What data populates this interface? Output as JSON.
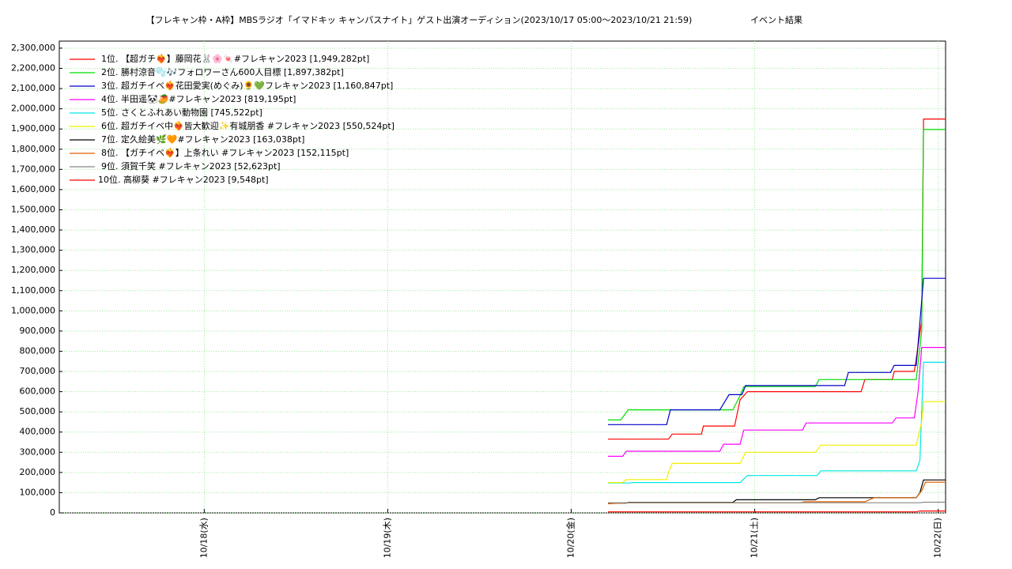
{
  "chart_data": {
    "type": "line",
    "title": "【フレキャン枠・A枠】MBSラジオ「イマドキッ キャンパスナイト」ゲスト出演オーディション(2023/10/17 05:00〜2023/10/21 21:59)",
    "subtitle": "イベント結果",
    "xlim": [
      17.21,
      22.04
    ],
    "xticks": [
      {
        "value": 18,
        "label": "10/18(水)"
      },
      {
        "value": 19,
        "label": "10/19(木)"
      },
      {
        "value": 20,
        "label": "10/20(金)"
      },
      {
        "value": 21,
        "label": "10/21(土)"
      },
      {
        "value": 22,
        "label": "10/22(日)"
      }
    ],
    "ylim": [
      0,
      2335000
    ],
    "yticks": [
      0,
      {
        "value": 100000,
        "label": "100,000"
      },
      {
        "value": 200000,
        "label": "200,000"
      },
      {
        "value": 300000,
        "label": "300,000"
      },
      {
        "value": 400000,
        "label": "400,000"
      },
      {
        "value": 500000,
        "label": "500,000"
      },
      {
        "value": 600000,
        "label": "600,000"
      },
      {
        "value": 700000,
        "label": "700,000"
      },
      {
        "value": 800000,
        "label": "800,000"
      },
      {
        "value": 900000,
        "label": "900,000"
      },
      {
        "value": 1000000,
        "label": "1,000,000"
      },
      {
        "value": 1100000,
        "label": "1,100,000"
      },
      {
        "value": 1200000,
        "label": "1,200,000"
      },
      {
        "value": 1300000,
        "label": "1,300,000"
      },
      {
        "value": 1400000,
        "label": "1,400,000"
      },
      {
        "value": 1500000,
        "label": "1,500,000"
      },
      {
        "value": 1600000,
        "label": "1,600,000"
      },
      {
        "value": 1700000,
        "label": "1,700,000"
      },
      {
        "value": 1800000,
        "label": "1,800,000"
      },
      {
        "value": 1900000,
        "label": "1,900,000"
      },
      {
        "value": 2000000,
        "label": "2,000,000"
      },
      {
        "value": 2100000,
        "label": "2,100,000"
      },
      {
        "value": 2200000,
        "label": "2,200,000"
      },
      {
        "value": 2300000,
        "label": "2,300,000"
      }
    ],
    "grid": true,
    "legend": "upper left",
    "series": [
      {
        "name": "1位. 【超ガチ❤️‍🔥】藤岡花🐰🌸🍬#フレキャン2023 [1,949,282pt]",
        "color": "#ff0000",
        "x": [
          20.2,
          20.53,
          20.55,
          20.71,
          20.72,
          20.89,
          20.92,
          20.96,
          21.58,
          21.6,
          21.75,
          21.76,
          21.87,
          21.91,
          21.92,
          22.04
        ],
        "values": [
          365000,
          365000,
          390000,
          390000,
          430000,
          430000,
          560000,
          600000,
          600000,
          660000,
          660000,
          700000,
          700000,
          950000,
          1949282,
          1949282
        ]
      },
      {
        "name": "2位. 勝村涼音🫧🎶フォロワーさん600人目標 [1,897,382pt]",
        "color": "#00dd00",
        "x": [
          20.2,
          20.27,
          20.31,
          20.88,
          20.92,
          20.94,
          21.33,
          21.35,
          21.88,
          21.91,
          21.92,
          22.04
        ],
        "values": [
          460000,
          460000,
          510000,
          510000,
          580000,
          625000,
          625000,
          660000,
          660000,
          900000,
          1897382,
          1897382
        ]
      },
      {
        "name": "3位. 超ガチイベ❤️‍🔥花田愛実(めぐみ)🌻💚フレキャン2023 [1,160,847pt]",
        "color": "#0000cc",
        "x": [
          20.2,
          20.52,
          20.54,
          20.81,
          20.86,
          20.93,
          20.95,
          21.49,
          21.51,
          21.74,
          21.76,
          21.88,
          21.91,
          21.92,
          22.04
        ],
        "values": [
          437000,
          437000,
          510000,
          510000,
          585000,
          585000,
          630000,
          630000,
          695000,
          695000,
          730000,
          730000,
          1050000,
          1160847,
          1160847
        ]
      },
      {
        "name": "4位. 半田遥🐼🥭#フレキャン2023 [819,195pt]",
        "color": "#ff00ff",
        "x": [
          20.2,
          20.28,
          20.3,
          20.81,
          20.83,
          20.92,
          20.94,
          21.26,
          21.28,
          21.75,
          21.77,
          21.87,
          21.89,
          21.91,
          22.04
        ],
        "values": [
          280000,
          280000,
          305000,
          305000,
          340000,
          340000,
          410000,
          410000,
          445000,
          445000,
          470000,
          470000,
          600000,
          819195,
          819195
        ]
      },
      {
        "name": "5位. さくとふれあい動物園 [745,522pt]",
        "color": "#00e8e8",
        "x": [
          20.2,
          20.32,
          20.33,
          20.92,
          20.96,
          21.34,
          21.36,
          21.88,
          21.9,
          21.92,
          22.04
        ],
        "values": [
          148000,
          148000,
          150000,
          150000,
          185000,
          185000,
          208000,
          208000,
          260000,
          745522,
          745522
        ]
      },
      {
        "name": "6位. 超ガチイベ中❤️‍🔥皆大歓迎✨有城朋香 #フレキャン2023 [550,524pt]",
        "color": "#f0f000",
        "x": [
          20.2,
          20.28,
          20.3,
          20.52,
          20.53,
          20.55,
          20.92,
          20.95,
          21.33,
          21.36,
          21.88,
          21.91,
          21.92,
          22.04
        ],
        "values": [
          150000,
          150000,
          165000,
          165000,
          200000,
          245000,
          245000,
          300000,
          300000,
          335000,
          335000,
          450000,
          550524,
          550524
        ]
      },
      {
        "name": "7位. 定久絵美🌿🧡#フレキャン2023 [163,038pt]",
        "color": "#000000",
        "x": [
          20.2,
          20.3,
          20.31,
          20.88,
          20.9,
          21.33,
          21.35,
          21.88,
          21.9,
          21.92,
          22.04
        ],
        "values": [
          48000,
          48000,
          52000,
          52000,
          65000,
          65000,
          75000,
          75000,
          100000,
          163038,
          163038
        ]
      },
      {
        "name": "8位. 【ガチイベ❤️‍🔥】上条れい #フレキャン2023 [152,115pt]",
        "color": "#e06000",
        "x": [
          20.2,
          20.3,
          21.25,
          21.27,
          21.6,
          21.65,
          21.88,
          21.91,
          21.93,
          22.04
        ],
        "values": [
          45000,
          50000,
          50000,
          55000,
          55000,
          75000,
          75000,
          110000,
          152115,
          152115
        ]
      },
      {
        "name": "9位. 須賀千笑 #フレキャン2023 [52,623pt]",
        "color": "#888888",
        "x": [
          20.2,
          21.9,
          21.92,
          22.04
        ],
        "values": [
          50000,
          50000,
          52623,
          52623
        ]
      },
      {
        "name": "10位. 高柳葵 #フレキャン2023 [9,548pt]",
        "color": "#ff0000",
        "x": [
          20.2,
          21.88,
          21.9,
          22.04
        ],
        "values": [
          5000,
          5000,
          9548,
          9548
        ]
      }
    ]
  }
}
